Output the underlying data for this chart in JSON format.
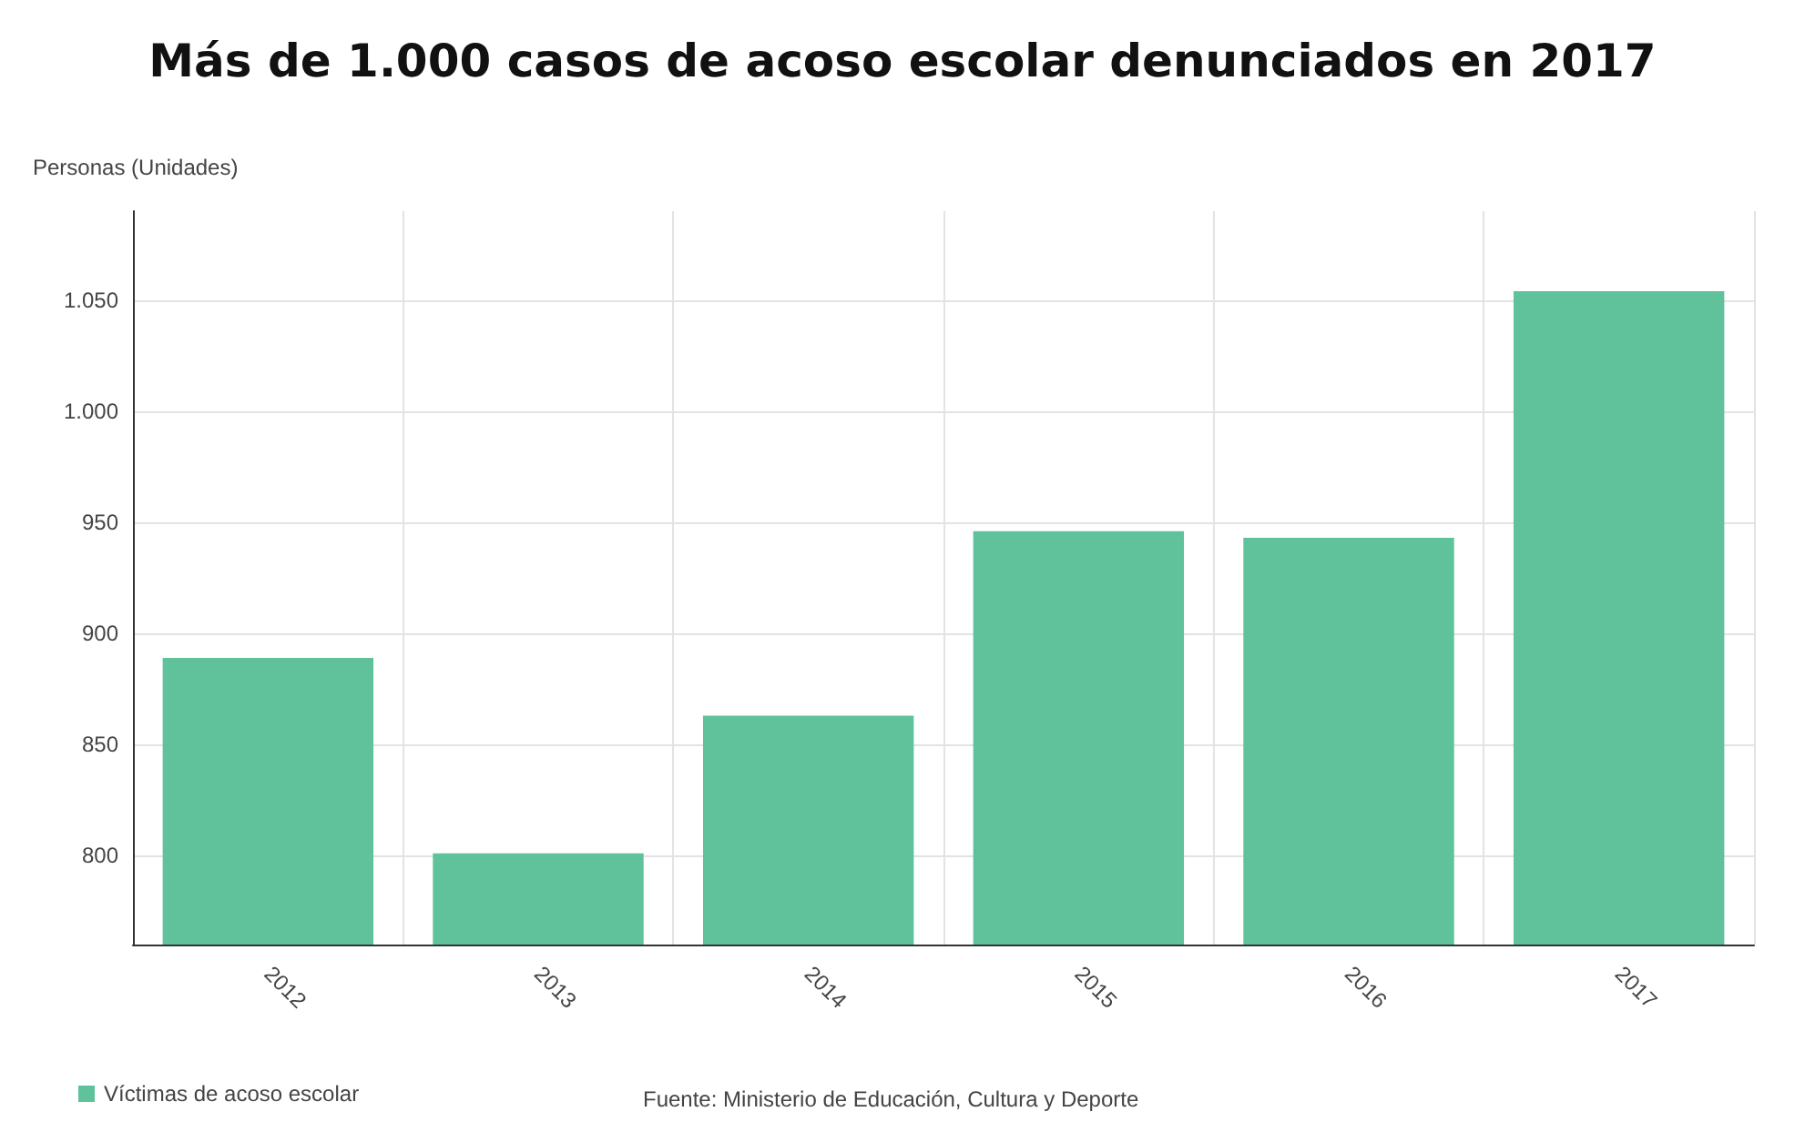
{
  "chart_data": {
    "type": "bar",
    "title": "Más de 1.000 casos de acoso escolar denunciados en 2017",
    "ylabel": "Personas (Unidades)",
    "categories": [
      "2012",
      "2013",
      "2014",
      "2015",
      "2016",
      "2017"
    ],
    "series": [
      {
        "name": "Víctimas de acoso escolar",
        "color": "#5fc29b",
        "values": [
          889,
          801,
          863,
          946,
          943,
          1054
        ]
      }
    ],
    "ylim": [
      760,
      1090
    ],
    "yticks": [
      800,
      850,
      900,
      950,
      {
        "value": 1000,
        "label": "1.000"
      },
      {
        "value": 1050,
        "label": "1.050"
      }
    ],
    "grid": true,
    "legend": "bottom left",
    "annotations": [
      "Fuente: Ministerio de Educación, Cultura y Deporte"
    ]
  }
}
